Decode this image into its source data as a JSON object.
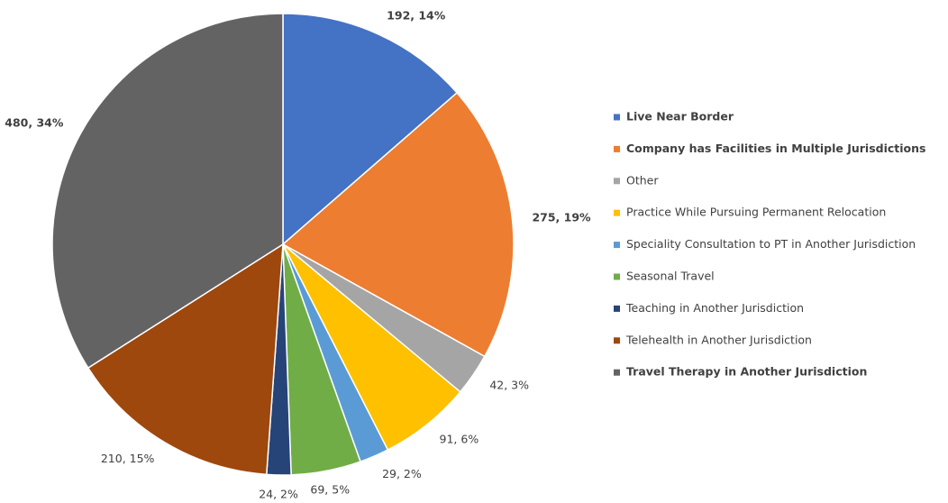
{
  "chart_data": {
    "type": "pie",
    "categories": [
      "Live Near Border",
      "Company has Facilities in Multiple Jurisdictions",
      "Other",
      "Practice While Pursuing Permanent Relocation",
      "Speciality Consultation to PT in Another Jurisdiction",
      "Seasonal Travel",
      "Teaching in Another Jurisdiction",
      "Telehealth in Another Jurisdiction",
      "Travel Therapy in Another Jurisdiction"
    ],
    "values": [
      192,
      275,
      42,
      91,
      29,
      69,
      24,
      210,
      480
    ],
    "value_labels": [
      "192, 14%",
      "275, 19%",
      "42, 3%",
      "91, 6%",
      "29, 2%",
      "69, 5%",
      "24, 2%",
      "210, 15%",
      "480, 34%"
    ],
    "colors": [
      "#4472c4",
      "#ed7d31",
      "#a5a5a5",
      "#ffc000",
      "#5b9bd5",
      "#70ad47",
      "#264478",
      "#9e480e",
      "#636363"
    ],
    "bold": [
      true,
      true,
      false,
      false,
      false,
      false,
      false,
      false,
      true
    ],
    "legend": "right"
  }
}
